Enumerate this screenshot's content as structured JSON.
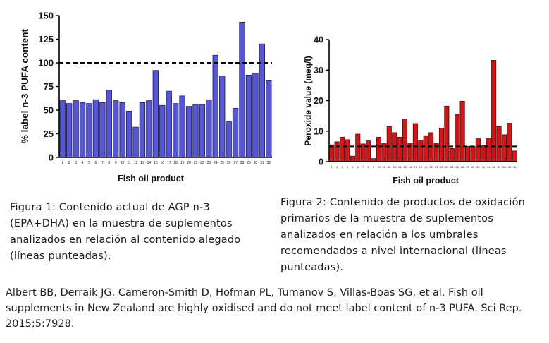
{
  "chart_data": [
    {
      "type": "bar",
      "ylabel": "% label n-3 PUFA content",
      "xlabel": "Fish oil product",
      "ylim": [
        0,
        150
      ],
      "yticks": [
        0,
        25,
        50,
        75,
        100,
        125,
        150
      ],
      "reference_line": 100,
      "bar_color": "#5555dd",
      "categories": [
        "1",
        "2",
        "3",
        "4",
        "5",
        "6",
        "7",
        "8",
        "9",
        "10",
        "11",
        "12",
        "13",
        "14",
        "15",
        "16",
        "17",
        "18",
        "19",
        "20",
        "21",
        "22",
        "23",
        "24",
        "25",
        "26",
        "27",
        "28",
        "29",
        "30",
        "31",
        "32"
      ],
      "values": [
        60,
        57,
        60,
        58,
        57,
        61,
        58,
        71,
        60,
        58,
        49,
        32,
        58,
        60,
        92,
        55,
        70,
        57,
        65,
        54,
        56,
        56,
        61,
        108,
        86,
        38,
        52,
        143,
        87,
        89,
        120,
        81
      ]
    },
    {
      "type": "bar",
      "ylabel": "Peroxide value (meq/l)",
      "xlabel": "Fish oil product",
      "ylim": [
        0,
        40
      ],
      "yticks": [
        0,
        10,
        20,
        30,
        40
      ],
      "reference_line": 5,
      "bar_color": "#dd1111",
      "categories": [
        "1",
        "2",
        "3",
        "4",
        "5",
        "6",
        "7",
        "8",
        "9",
        "10",
        "11",
        "12",
        "13",
        "14",
        "15",
        "16",
        "17",
        "18",
        "19",
        "20",
        "21",
        "22",
        "23",
        "24",
        "25",
        "26",
        "27",
        "28",
        "29",
        "30",
        "31",
        "32",
        "33",
        "34",
        "35",
        "36"
      ],
      "values": [
        5.5,
        6.5,
        8,
        7.2,
        1.8,
        9,
        5.8,
        6.8,
        1,
        8,
        6,
        11.5,
        9.5,
        8,
        14,
        6,
        12.5,
        7,
        8.5,
        9.5,
        6,
        11,
        18.2,
        4.3,
        15.5,
        19.8,
        5,
        5,
        7.5,
        5.2,
        7.5,
        33.2,
        11.5,
        8.8,
        12.6,
        3.5
      ]
    }
  ],
  "captions": {
    "figure1": "Figura 1: Contenido actual de AGP n-3 (EPA+DHA) en la muestra de suplementos analizados en relación al contenido alegado (líneas punteadas).",
    "figure2": "Figura 2: Contenido de productos de oxidación primarios de la muestra de suplementos analizados en relación a los umbrales recomendados a nivel internacional (líneas punteadas)."
  },
  "citation": "Albert BB, Derraik JG, Cameron-Smith D, Hofman PL, Tumanov S, Villas-Boas SG, et al. Fish oil supplements in New Zealand are highly oxidised and do not meet label content of n-3 PUFA. Sci Rep. 2015;5:7928."
}
